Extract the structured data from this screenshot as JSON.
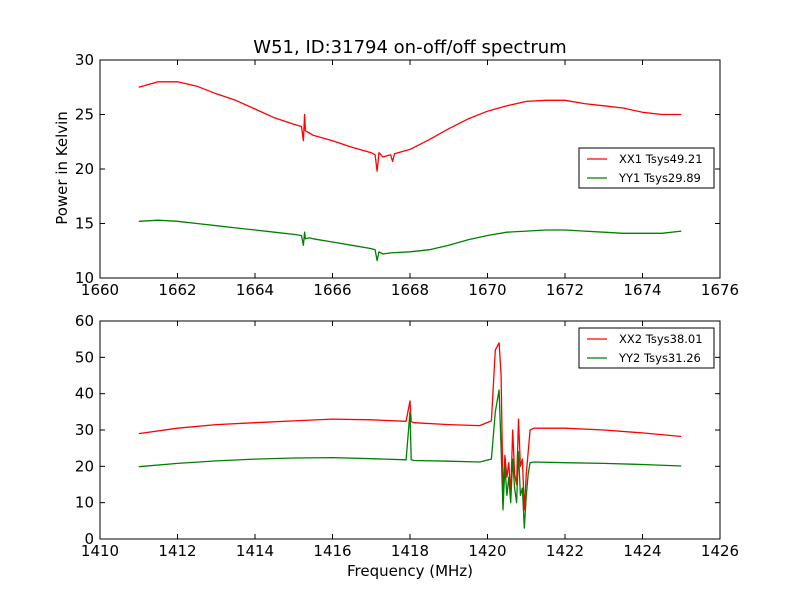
{
  "figure": {
    "title": "W51, ID:31794 on-off/off spectrum",
    "ylabel": "Power in Kelvin",
    "xlabel": "Frequency (MHz)"
  },
  "chart_data": [
    {
      "type": "line",
      "title": "W51, ID:31794 on-off/off spectrum",
      "xlabel": "",
      "ylabel": "Power in Kelvin",
      "xlim": [
        1660,
        1676
      ],
      "ylim": [
        10,
        30
      ],
      "xticks": [
        1660,
        1662,
        1664,
        1666,
        1668,
        1670,
        1672,
        1674,
        1676
      ],
      "yticks": [
        10,
        15,
        20,
        25,
        30
      ],
      "grid": false,
      "legend": "center-right",
      "series": [
        {
          "name": "XX1 Tsys49.21",
          "color": "#ff0000",
          "x": [
            1661.0,
            1661.5,
            1662.0,
            1662.5,
            1663.0,
            1663.5,
            1664.0,
            1664.5,
            1665.0,
            1665.2,
            1665.25,
            1665.28,
            1665.3,
            1665.4,
            1665.5,
            1666.0,
            1666.5,
            1667.0,
            1667.1,
            1667.15,
            1667.2,
            1667.3,
            1667.5,
            1667.55,
            1667.6,
            1668.0,
            1668.5,
            1669.0,
            1669.5,
            1670.0,
            1670.5,
            1671.0,
            1671.5,
            1672.0,
            1672.5,
            1673.0,
            1673.5,
            1674.0,
            1674.5,
            1675.0
          ],
          "y": [
            27.5,
            28.0,
            28.0,
            27.6,
            26.9,
            26.3,
            25.5,
            24.7,
            24.1,
            23.9,
            22.6,
            25.0,
            23.5,
            23.3,
            23.1,
            22.6,
            22.0,
            21.5,
            21.3,
            19.8,
            21.5,
            21.1,
            21.3,
            20.7,
            21.4,
            21.8,
            22.7,
            23.7,
            24.6,
            25.3,
            25.8,
            26.2,
            26.3,
            26.3,
            26.0,
            25.8,
            25.6,
            25.2,
            25.0,
            25.0
          ]
        },
        {
          "name": "YY1 Tsys29.89",
          "color": "#008000",
          "x": [
            1661.0,
            1661.5,
            1662.0,
            1662.5,
            1663.0,
            1663.5,
            1664.0,
            1664.5,
            1665.0,
            1665.2,
            1665.25,
            1665.28,
            1665.3,
            1665.4,
            1665.5,
            1666.0,
            1666.5,
            1667.0,
            1667.1,
            1667.15,
            1667.2,
            1667.3,
            1667.5,
            1668.0,
            1668.5,
            1669.0,
            1669.5,
            1670.0,
            1670.5,
            1671.0,
            1671.5,
            1672.0,
            1672.5,
            1673.0,
            1673.5,
            1674.0,
            1674.5,
            1675.0
          ],
          "y": [
            15.2,
            15.3,
            15.2,
            15.0,
            14.8,
            14.6,
            14.4,
            14.2,
            14.0,
            13.9,
            13.0,
            14.2,
            13.6,
            13.7,
            13.6,
            13.3,
            13.0,
            12.7,
            12.6,
            11.6,
            12.4,
            12.2,
            12.3,
            12.4,
            12.6,
            13.0,
            13.5,
            13.9,
            14.2,
            14.3,
            14.4,
            14.4,
            14.3,
            14.2,
            14.1,
            14.1,
            14.1,
            14.3
          ]
        }
      ]
    },
    {
      "type": "line",
      "title": "",
      "xlabel": "Frequency (MHz)",
      "ylabel": "",
      "xlim": [
        1410,
        1426
      ],
      "ylim": [
        0,
        60
      ],
      "xticks": [
        1410,
        1412,
        1414,
        1416,
        1418,
        1420,
        1422,
        1424,
        1426
      ],
      "yticks": [
        0,
        10,
        20,
        30,
        40,
        50,
        60
      ],
      "grid": false,
      "legend": "top-right",
      "series": [
        {
          "name": "XX2 Tsys38.01",
          "color": "#ff0000",
          "x": [
            1411.0,
            1412.0,
            1413.0,
            1414.0,
            1415.0,
            1416.0,
            1417.0,
            1417.9,
            1418.0,
            1418.03,
            1418.1,
            1419.0,
            1419.8,
            1420.1,
            1420.2,
            1420.3,
            1420.35,
            1420.4,
            1420.45,
            1420.5,
            1420.55,
            1420.6,
            1420.65,
            1420.7,
            1420.75,
            1420.8,
            1420.85,
            1420.9,
            1420.95,
            1421.0,
            1421.05,
            1421.1,
            1421.2,
            1422.0,
            1423.0,
            1424.0,
            1425.0
          ],
          "y": [
            29.0,
            30.5,
            31.5,
            32.0,
            32.5,
            33.0,
            32.8,
            32.4,
            38.0,
            32.3,
            32.0,
            31.5,
            31.2,
            32.5,
            52.0,
            54.0,
            45.0,
            12.0,
            23.0,
            17.0,
            21.0,
            12.0,
            30.0,
            18.0,
            15.0,
            33.0,
            20.0,
            22.0,
            8.0,
            18.0,
            24.0,
            30.0,
            30.5,
            30.5,
            30.0,
            29.2,
            28.2
          ]
        },
        {
          "name": "YY2 Tsys31.26",
          "color": "#008000",
          "x": [
            1411.0,
            1412.0,
            1413.0,
            1414.0,
            1415.0,
            1416.0,
            1417.0,
            1417.9,
            1418.0,
            1418.03,
            1418.1,
            1419.0,
            1419.8,
            1420.1,
            1420.2,
            1420.3,
            1420.35,
            1420.4,
            1420.45,
            1420.5,
            1420.55,
            1420.6,
            1420.65,
            1420.7,
            1420.75,
            1420.8,
            1420.85,
            1420.9,
            1420.95,
            1421.0,
            1421.05,
            1421.1,
            1421.2,
            1422.0,
            1423.0,
            1424.0,
            1425.0
          ],
          "y": [
            19.9,
            20.8,
            21.5,
            22.0,
            22.3,
            22.4,
            22.1,
            21.8,
            35.0,
            21.8,
            21.6,
            21.4,
            21.2,
            22.0,
            35.0,
            41.0,
            25.0,
            8.0,
            20.0,
            12.0,
            17.0,
            10.0,
            22.0,
            14.0,
            10.0,
            24.0,
            12.0,
            14.0,
            3.0,
            12.0,
            18.0,
            21.0,
            21.2,
            21.0,
            20.8,
            20.5,
            20.1
          ]
        }
      ]
    }
  ]
}
